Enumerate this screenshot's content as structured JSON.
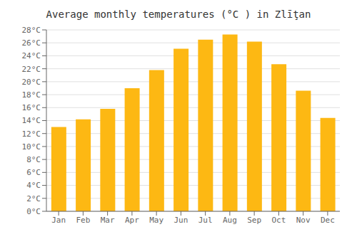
{
  "chart_data": {
    "type": "bar",
    "title": "Average monthly temperatures (°C ) in Zlīţan",
    "categories": [
      "Jan",
      "Feb",
      "Mar",
      "Apr",
      "May",
      "Jun",
      "Jul",
      "Aug",
      "Sep",
      "Oct",
      "Nov",
      "Dec"
    ],
    "values": [
      13.0,
      14.2,
      15.8,
      19.0,
      21.8,
      25.1,
      26.5,
      27.3,
      26.2,
      22.7,
      18.6,
      14.4
    ],
    "color": "#FDB813",
    "ylim": [
      0,
      28
    ],
    "yticks": [
      {
        "value": 0,
        "label": "0°C"
      },
      {
        "value": 2,
        "label": "2°C"
      },
      {
        "value": 4,
        "label": "4°C"
      },
      {
        "value": 6,
        "label": "6°C"
      },
      {
        "value": 8,
        "label": "8°C"
      },
      {
        "value": 10,
        "label": "10°C"
      },
      {
        "value": 12,
        "label": "12°C"
      },
      {
        "value": 14,
        "label": "14°C"
      },
      {
        "value": 16,
        "label": "16°C"
      },
      {
        "value": 18,
        "label": "18°C"
      },
      {
        "value": 20,
        "label": "20°C"
      },
      {
        "value": 22,
        "label": "22°C"
      },
      {
        "value": 24,
        "label": "24°C"
      },
      {
        "value": 26,
        "label": "26°C"
      },
      {
        "value": 28,
        "label": "28°C"
      }
    ],
    "grid": true
  }
}
